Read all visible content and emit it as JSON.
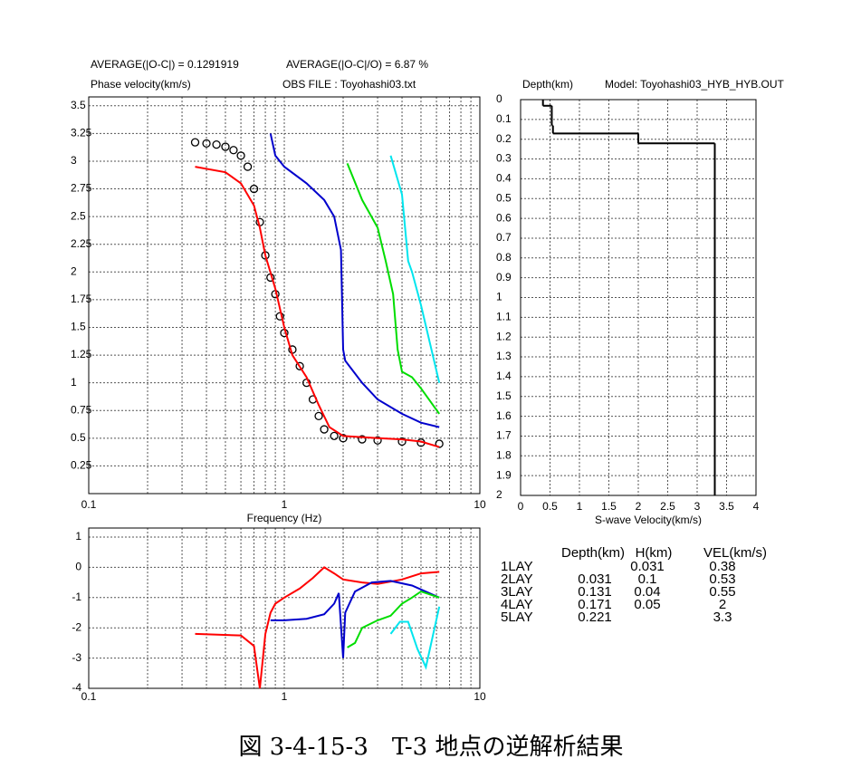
{
  "chart_data": [
    {
      "type": "line",
      "annotations": [
        "AVERAGE(|O-C|) = 0.1291919",
        "AVERAGE(|O-C|/O) = 6.87 %"
      ],
      "ylabel": "Phase velocity(km/s)",
      "subtitle": "OBS FILE : Toyohashi03.txt",
      "xlabel": "Frequency (Hz)",
      "xlog": true,
      "xlim": [
        0.1,
        10
      ],
      "xticks": [
        0.1,
        1,
        10
      ],
      "xminorticks": [
        0.2,
        0.3,
        0.4,
        0.5,
        0.6,
        0.7,
        0.8,
        0.9,
        2,
        3,
        4,
        5,
        6,
        7,
        8,
        9
      ],
      "ylim": [
        0,
        3.58
      ],
      "yticks": [
        0.25,
        0.5,
        0.75,
        1,
        1.25,
        1.5,
        1.75,
        2,
        2.25,
        2.5,
        2.75,
        3,
        3.25,
        3.5
      ],
      "grid": true,
      "series": [
        {
          "color": "#000000",
          "marker": "circle",
          "x": [
            0.35,
            0.4,
            0.45,
            0.5,
            0.55,
            0.6,
            0.65,
            0.7,
            0.75,
            0.8,
            0.85,
            0.9,
            0.95,
            1.0,
            1.1,
            1.2,
            1.3,
            1.4,
            1.5,
            1.6,
            1.8,
            2.0,
            2.5,
            3,
            4,
            5,
            6.2
          ],
          "values": [
            3.17,
            3.16,
            3.15,
            3.13,
            3.1,
            3.05,
            2.95,
            2.75,
            2.45,
            2.15,
            1.95,
            1.8,
            1.6,
            1.45,
            1.3,
            1.15,
            1.0,
            0.85,
            0.7,
            0.58,
            0.52,
            0.5,
            0.49,
            0.48,
            0.47,
            0.46,
            0.45
          ]
        },
        {
          "color": "#ff0000",
          "x": [
            0.35,
            0.5,
            0.6,
            0.7,
            0.75,
            0.8,
            0.9,
            1.0,
            1.1,
            1.3,
            1.5,
            1.7,
            2.0,
            3,
            4,
            5,
            6.2
          ],
          "values": [
            2.95,
            2.9,
            2.8,
            2.6,
            2.4,
            2.15,
            1.85,
            1.5,
            1.25,
            1.05,
            0.8,
            0.6,
            0.52,
            0.5,
            0.49,
            0.47,
            0.42
          ]
        },
        {
          "color": "#0000cc",
          "x": [
            0.85,
            0.9,
            1.0,
            1.3,
            1.6,
            1.8,
            1.95,
            2.0,
            2.05,
            2.5,
            3,
            4,
            5,
            6.2
          ],
          "values": [
            3.25,
            3.05,
            2.95,
            2.8,
            2.65,
            2.5,
            2.2,
            1.3,
            1.2,
            1.0,
            0.85,
            0.72,
            0.64,
            0.6
          ]
        },
        {
          "color": "#00dd00",
          "x": [
            2.1,
            2.5,
            3,
            3.3,
            3.6,
            3.8,
            4.0,
            4.5,
            5,
            6.2
          ],
          "values": [
            2.98,
            2.65,
            2.4,
            2.1,
            1.8,
            1.3,
            1.1,
            1.05,
            0.95,
            0.72
          ]
        },
        {
          "color": "#00e5ee",
          "x": [
            3.5,
            4,
            4.3,
            4.5,
            5,
            6.2
          ],
          "values": [
            3.05,
            2.7,
            2.1,
            2.0,
            1.7,
            1.0
          ]
        }
      ]
    },
    {
      "type": "step",
      "ylabel": "Depth(km)",
      "subtitle": "Model: Toyohashi03_HYB_HYB.OUT",
      "xlabel": "S-wave Velocity(km/s)",
      "xlim": [
        0,
        4
      ],
      "xticks": [
        0,
        0.5,
        1,
        1.5,
        2,
        2.5,
        3,
        3.5,
        4
      ],
      "ylim": [
        0,
        2
      ],
      "yinvert": true,
      "yticks": [
        0,
        0.1,
        0.2,
        0.3,
        0.4,
        0.5,
        0.6,
        0.7,
        0.8,
        0.9,
        1,
        1.1,
        1.2,
        1.3,
        1.4,
        1.5,
        1.6,
        1.7,
        1.8,
        1.9,
        2
      ],
      "grid": true,
      "color": "#000000"
    },
    {
      "type": "line",
      "xlog": true,
      "xlim": [
        0.1,
        10
      ],
      "xticks": [
        0.1,
        1,
        10
      ],
      "xminorticks": [
        0.2,
        0.3,
        0.4,
        0.5,
        0.6,
        0.7,
        0.8,
        0.9,
        2,
        3,
        4,
        5,
        6,
        7,
        8,
        9
      ],
      "ylim": [
        -4,
        1.3
      ],
      "yticks": [
        -4,
        -3,
        -2,
        -1,
        0,
        1
      ],
      "grid": true,
      "series": [
        {
          "color": "#ff0000",
          "x": [
            0.35,
            0.6,
            0.7,
            0.75,
            0.8,
            0.85,
            0.9,
            1.0,
            1.2,
            1.4,
            1.6,
            1.8,
            2.0,
            2.5,
            3,
            4,
            5,
            6.2
          ],
          "values": [
            -2.2,
            -2.25,
            -2.6,
            -4,
            -2.2,
            -1.5,
            -1.2,
            -1.0,
            -0.7,
            -0.35,
            0,
            -0.2,
            -0.4,
            -0.5,
            -0.55,
            -0.4,
            -0.2,
            -0.15
          ]
        },
        {
          "color": "#0000cc",
          "x": [
            0.85,
            1.0,
            1.3,
            1.6,
            1.8,
            1.9,
            2.0,
            2.05,
            2.3,
            2.8,
            3.5,
            4.5,
            6.2
          ],
          "values": [
            -1.75,
            -1.75,
            -1.7,
            -1.55,
            -1.2,
            -0.85,
            -3.0,
            -1.5,
            -0.8,
            -0.5,
            -0.45,
            -0.6,
            -1.0
          ]
        },
        {
          "color": "#00dd00",
          "x": [
            2.1,
            2.3,
            2.5,
            3,
            3.5,
            4,
            4.5,
            5,
            6.2
          ],
          "values": [
            -2.65,
            -2.5,
            -2.0,
            -1.75,
            -1.6,
            -1.2,
            -1.0,
            -0.8,
            -1.0
          ]
        },
        {
          "color": "#00e5ee",
          "x": [
            3.5,
            3.9,
            4.3,
            4.8,
            5.3,
            6.2
          ],
          "values": [
            -2.2,
            -1.8,
            -1.8,
            -2.7,
            -3.3,
            -1.3
          ]
        }
      ]
    }
  ],
  "table": {
    "header": [
      "Depth(km)",
      "H(km)",
      "VEL(km/s)"
    ],
    "rows": [
      [
        "1LAY",
        null,
        0.031,
        0.38
      ],
      [
        "2LAY",
        0.031,
        0.1,
        0.53
      ],
      [
        "3LAY",
        0.131,
        0.04,
        0.55
      ],
      [
        "4LAY",
        0.171,
        0.05,
        2
      ],
      [
        "5LAY",
        0.221,
        null,
        3.3
      ]
    ]
  },
  "caption": "図 3-4-15-3　T-3 地点の逆解析結果"
}
